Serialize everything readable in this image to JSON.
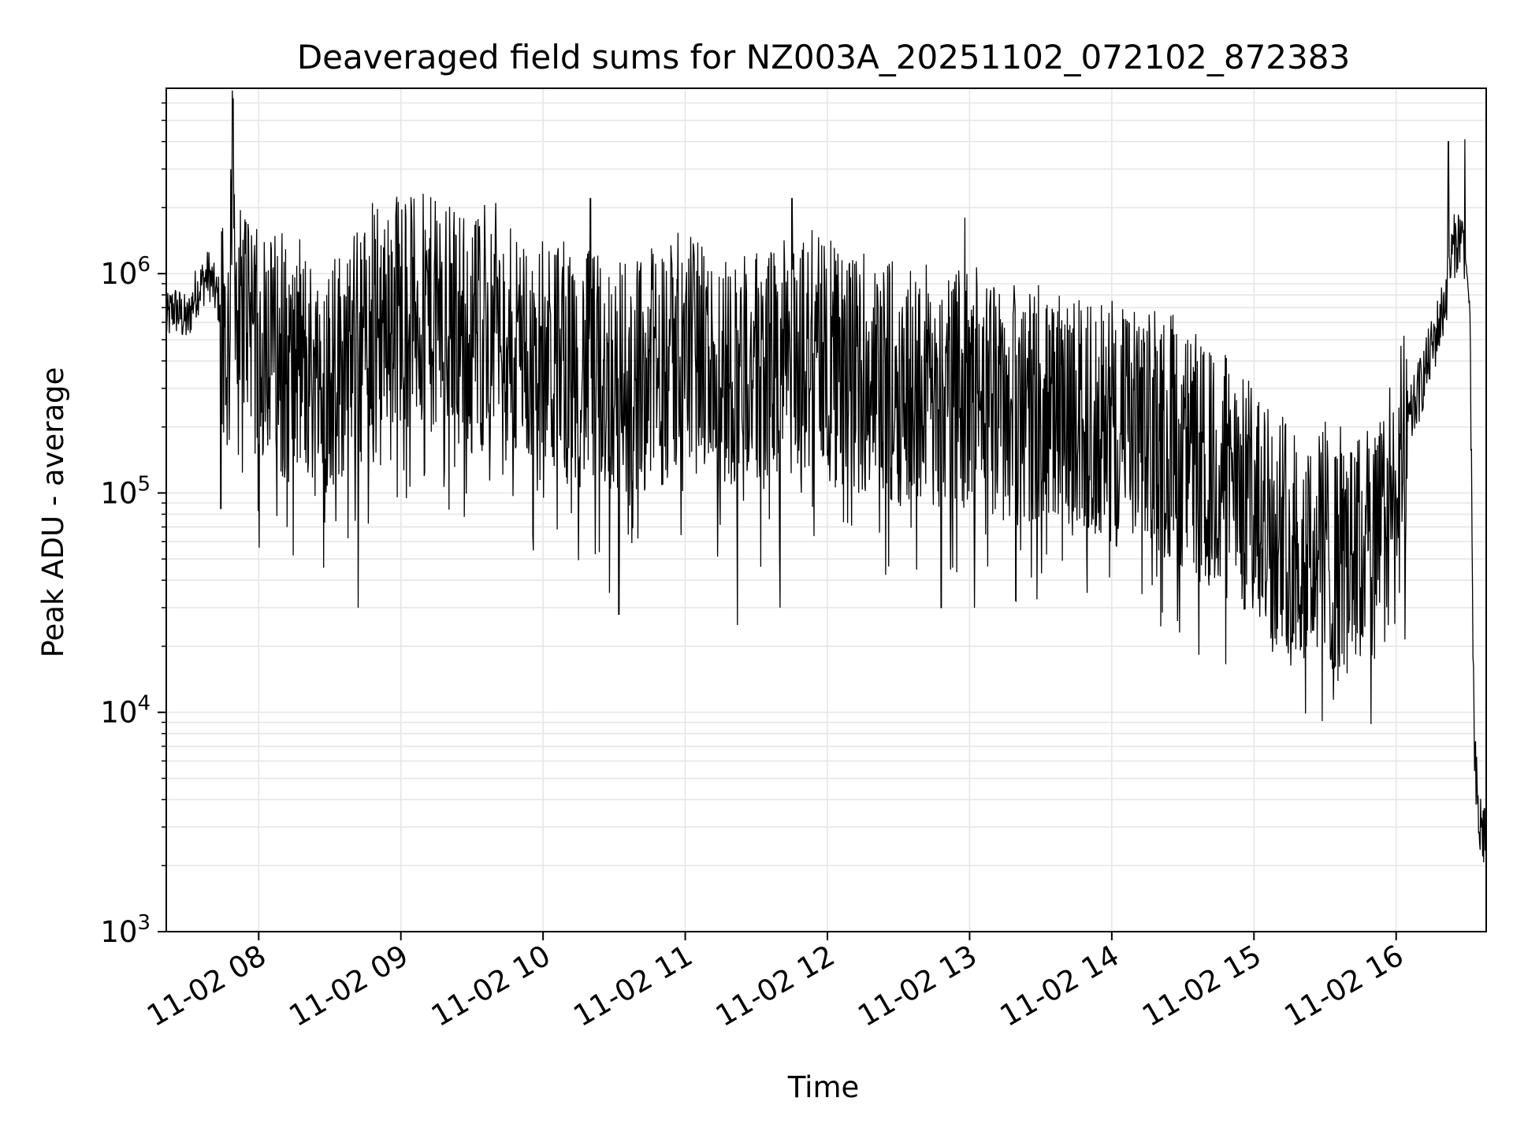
{
  "chart_data": {
    "type": "line",
    "title": "Deaveraged field sums for NZ003A_20251102_072102_872383",
    "xlabel": "Time",
    "ylabel": "Peak ADU - average",
    "xlim": [
      "2025-11-02 07:21",
      "2025-11-02 16:38"
    ],
    "ylim": [
      1000,
      7000000
    ],
    "yscale": "log",
    "grid": "on (major and minor)",
    "legend": "none",
    "line_color": "#000000",
    "x_ticks": [
      {
        "value": "2025-11-02 08:00",
        "label": "11-02 08"
      },
      {
        "value": "2025-11-02 09:00",
        "label": "11-02 09"
      },
      {
        "value": "2025-11-02 10:00",
        "label": "11-02 10"
      },
      {
        "value": "2025-11-02 11:00",
        "label": "11-02 11"
      },
      {
        "value": "2025-11-02 12:00",
        "label": "11-02 12"
      },
      {
        "value": "2025-11-02 13:00",
        "label": "11-02 13"
      },
      {
        "value": "2025-11-02 14:00",
        "label": "11-02 14"
      },
      {
        "value": "2025-11-02 15:00",
        "label": "11-02 15"
      },
      {
        "value": "2025-11-02 16:00",
        "label": "11-02 16"
      }
    ],
    "y_ticks": [
      {
        "value": 1000,
        "base": "10",
        "exp": "3"
      },
      {
        "value": 10000,
        "base": "10",
        "exp": "4"
      },
      {
        "value": 100000,
        "base": "10",
        "exp": "5"
      },
      {
        "value": 1000000,
        "base": "10",
        "exp": "6"
      }
    ],
    "series": [
      {
        "x": [
          "07:21",
          "07:24",
          "07:27",
          "07:30",
          "07:33",
          "07:36",
          "07:39",
          "07:42",
          "07:45",
          "07:47",
          "07:49",
          "07:51",
          "07:53",
          "07:55",
          "07:57",
          "08:00",
          "08:05",
          "08:10",
          "08:15",
          "08:20",
          "08:25",
          "08:30",
          "08:35",
          "08:40",
          "08:45",
          "08:50",
          "08:55",
          "09:00",
          "09:10",
          "09:20",
          "09:30",
          "09:40",
          "09:50",
          "10:00",
          "10:10",
          "10:20",
          "10:30",
          "10:40",
          "10:50",
          "11:00",
          "11:10",
          "11:20",
          "11:30",
          "11:40",
          "11:50",
          "12:00",
          "12:10",
          "12:20",
          "12:30",
          "12:40",
          "12:50",
          "13:00",
          "13:10",
          "13:20",
          "13:30",
          "13:40",
          "13:50",
          "14:00",
          "14:10",
          "14:20",
          "14:30",
          "14:40",
          "14:50",
          "15:00",
          "15:10",
          "15:20",
          "15:30",
          "15:40",
          "15:50",
          "16:00",
          "16:05",
          "16:10",
          "16:15",
          "16:20",
          "16:24",
          "16:27",
          "16:29",
          "16:31",
          "16:33",
          "16:35",
          "16:38"
        ],
        "y": [
          600000,
          700000,
          650000,
          600000,
          800000,
          900000,
          1000000,
          800000,
          700000,
          400000,
          4800000,
          500000,
          600000,
          800000,
          700000,
          400000,
          500000,
          400000,
          350000,
          400000,
          300000,
          350000,
          400000,
          450000,
          500000,
          600000,
          650000,
          700000,
          650000,
          600000,
          550000,
          500000,
          450000,
          400000,
          380000,
          360000,
          340000,
          350000,
          380000,
          400000,
          380000,
          360000,
          350000,
          400000,
          420000,
          400000,
          350000,
          330000,
          320000,
          310000,
          300000,
          280000,
          260000,
          250000,
          240000,
          230000,
          220000,
          210000,
          200000,
          180000,
          160000,
          130000,
          110000,
          90000,
          70000,
          60000,
          55000,
          50000,
          55000,
          90000,
          200000,
          300000,
          450000,
          700000,
          1300000,
          1500000,
          1300000,
          700000,
          6000,
          3000,
          2800
        ],
        "spikes_high": [
          [
            "07:44",
            4700000
          ],
          [
            "08:48",
            2100000
          ],
          [
            "09:40",
            2100000
          ],
          [
            "10:20",
            2200000
          ],
          [
            "10:28",
            1900000
          ],
          [
            "11:45",
            2200000
          ],
          [
            "12:58",
            1800000
          ],
          [
            "16:22",
            4000000
          ],
          [
            "16:29",
            4100000
          ]
        ],
        "spikes_low": [
          [
            "07:44",
            85000
          ],
          [
            "08:12",
            70000
          ],
          [
            "08:42",
            30000
          ],
          [
            "10:28",
            35000
          ],
          [
            "10:32",
            28000
          ],
          [
            "11:22",
            25000
          ],
          [
            "11:40",
            30000
          ],
          [
            "12:48",
            30000
          ],
          [
            "13:02",
            30000
          ],
          [
            "15:10",
            24000
          ],
          [
            "15:40",
            23000
          ]
        ]
      }
    ]
  }
}
